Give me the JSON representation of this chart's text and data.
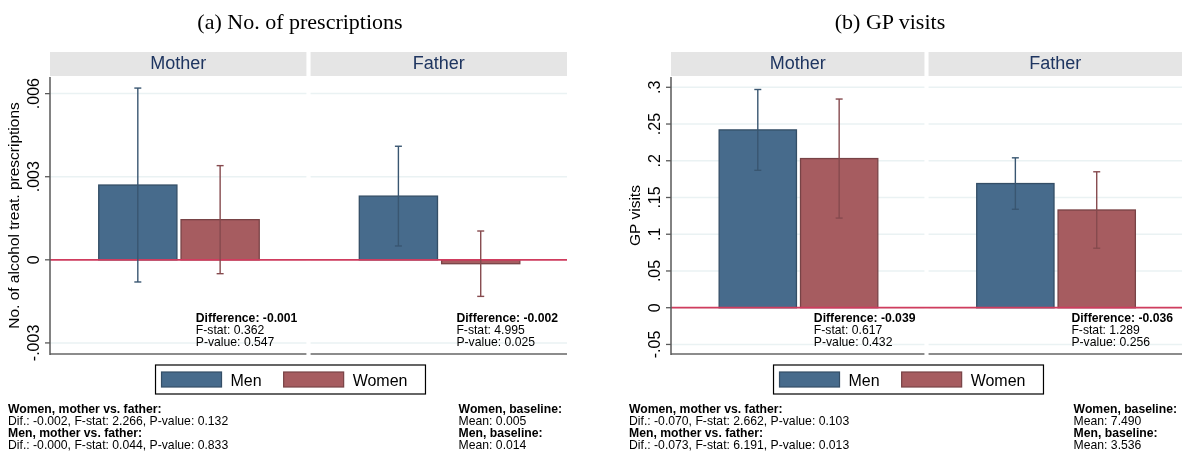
{
  "chart_data": [
    {
      "type": "bar",
      "title": "(a) No. of prescriptions",
      "ylabel": "No. of alcohol treat. prescriptions",
      "categories": [
        "Mother",
        "Father"
      ],
      "series": [
        {
          "name": "Men",
          "color": "#476b8c",
          "values": [
            0.0027,
            0.0023
          ],
          "errors": [
            0.0035,
            0.0018
          ]
        },
        {
          "name": "Women",
          "color": "#a65c60",
          "values": [
            0.00145,
            -0.00014
          ],
          "errors": [
            0.00195,
            0.00118
          ]
        }
      ],
      "ylim": [
        -0.0034,
        0.0066
      ],
      "yticks": [
        {
          "value": -0.003,
          "label": "-.003"
        },
        0,
        {
          "value": 0.003,
          "label": ".003"
        },
        {
          "value": 0.006,
          "label": ".006"
        }
      ],
      "grid": "y",
      "legend": "bottom",
      "ref_lines": [
        {
          "axis": "y",
          "value": 0,
          "color": "#d03c5e"
        }
      ],
      "annotations": [
        "Difference: -0.001\nF-stat: 0.362\nP-value: 0.547",
        "Difference: -0.002\nF-stat: 4.995\nP-value: 0.025",
        "Women, mother vs. father:\nDif.: -0.002, F-stat: 2.266, P-value: 0.132\nMen, mother vs. father:\nDif.: -0.000, F-stat: 0.044, P-value: 0.833",
        "Women, baseline:\nMean: 0.005\nMen, baseline:\nMean: 0.014"
      ]
    },
    {
      "type": "bar",
      "title": "(b) GP visits",
      "ylabel": "GP visits",
      "categories": [
        "Mother",
        "Father"
      ],
      "series": [
        {
          "name": "Men",
          "color": "#476b8c",
          "values": [
            0.242,
            0.169
          ],
          "errors": [
            0.055,
            0.035
          ]
        },
        {
          "name": "Women",
          "color": "#a65c60",
          "values": [
            0.203,
            0.133
          ],
          "errors": [
            0.081,
            0.052
          ]
        }
      ],
      "ylim": [
        -0.063,
        0.314
      ],
      "yticks": [
        {
          "value": -0.05,
          "label": "-.05"
        },
        0,
        {
          "value": 0.05,
          "label": ".05"
        },
        {
          "value": 0.1,
          "label": ".1"
        },
        {
          "value": 0.15,
          "label": ".15"
        },
        {
          "value": 0.2,
          "label": ".2"
        },
        {
          "value": 0.25,
          "label": ".25"
        },
        {
          "value": 0.3,
          "label": ".3"
        }
      ],
      "grid": "y",
      "legend": "bottom",
      "ref_lines": [
        {
          "axis": "y",
          "value": 0,
          "color": "#d03c5e"
        }
      ],
      "annotations": [
        "Difference: -0.039\nF-stat: 0.617\nP-value: 0.432",
        "Difference: -0.036\nF-stat: 1.289\nP-value: 0.256",
        "Women, mother vs. father:\nDif.: -0.070, F-stat: 2.662, P-value: 0.103\nMen, mother vs. father:\nDif.: -0.073, F-stat: 6.191, P-value: 0.013",
        "Women, baseline:\nMean: 7.490\nMen, baseline:\nMean: 3.536"
      ]
    }
  ]
}
